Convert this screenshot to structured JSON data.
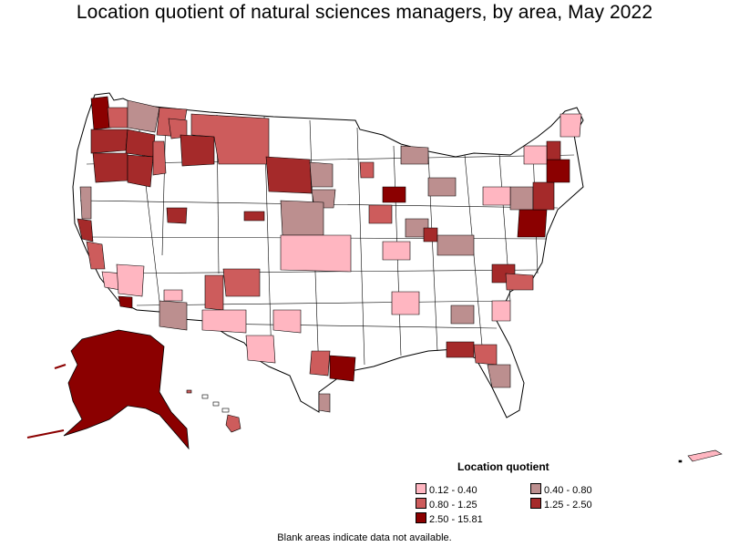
{
  "title": "Location quotient of natural sciences managers, by area, May 2022",
  "legend": {
    "title": "Location quotient",
    "items": [
      {
        "label": "0.12 - 0.40",
        "color": "#ffb6c1"
      },
      {
        "label": "0.40 - 0.80",
        "color": "#bc8f8f"
      },
      {
        "label": "0.80 - 1.25",
        "color": "#cd5c5c"
      },
      {
        "label": "1.25 - 2.50",
        "color": "#a52a2a"
      },
      {
        "label": "2.50 - 15.81",
        "color": "#8b0000"
      }
    ]
  },
  "footnote": "Blank areas indicate data not available.",
  "colors": {
    "no_data": "#ffffff",
    "border": "#000000"
  }
}
